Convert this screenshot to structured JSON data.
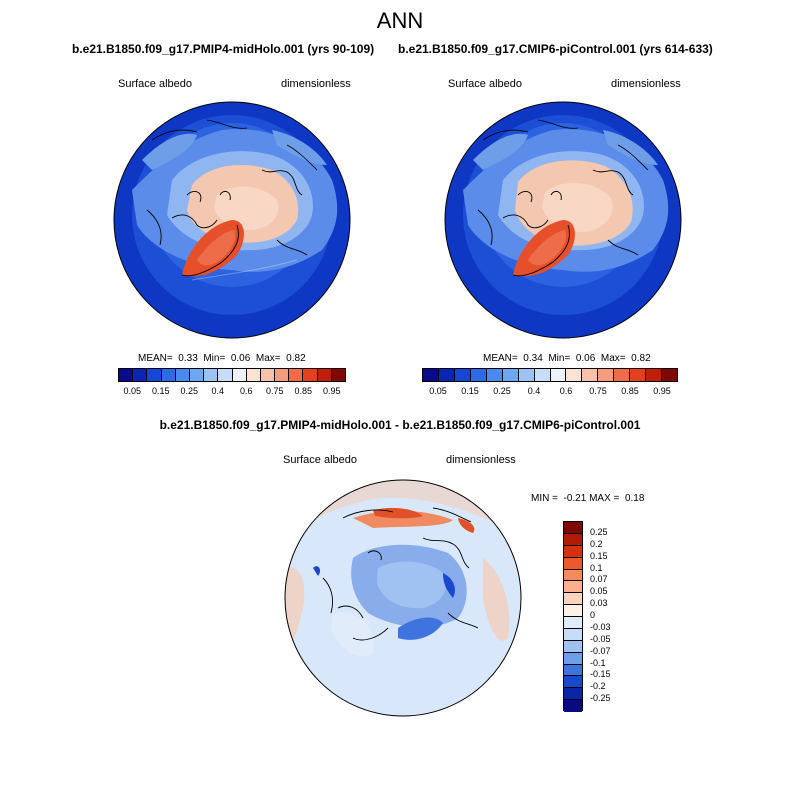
{
  "title": "ANN",
  "panels": [
    {
      "title": "b.e21.B1850.f09_g17.PMIP4-midHolo.001 (yrs 90-109)",
      "variable": "Surface albedo",
      "units": "dimensionless",
      "stats": {
        "mean_label": "MEAN=",
        "mean": "0.33",
        "min_label": "Min=",
        "min": "0.06",
        "max_label": "Max=",
        "max": "0.82"
      }
    },
    {
      "title": "b.e21.B1850.f09_g17.CMIP6-piControl.001 (yrs 614-633)",
      "variable": "Surface albedo",
      "units": "dimensionless",
      "stats": {
        "mean_label": "MEAN=",
        "mean": "0.34",
        "min_label": "Min=",
        "min": "0.06",
        "max_label": "Max=",
        "max": "0.82"
      }
    },
    {
      "title": "b.e21.B1850.f09_g17.PMIP4-midHolo.001 - b.e21.B1850.f09_g17.CMIP6-piControl.001",
      "variable": "Surface albedo",
      "units": "dimensionless",
      "stats": {
        "min_label": "MIN =",
        "min": "-0.21",
        "max_label": "MAX =",
        "max": "0.18"
      }
    }
  ],
  "colorbar_abs": {
    "labels": [
      "0.05",
      "0.15",
      "0.25",
      "0.4",
      "0.6",
      "0.75",
      "0.85",
      "0.95"
    ],
    "colors": [
      "#0a0a8c",
      "#0b24b4",
      "#1646d6",
      "#2e6ae8",
      "#4a8af0",
      "#6fa6f2",
      "#9cc2f4",
      "#c6dcf8",
      "#eef3fb",
      "#fde2d2",
      "#f9c2a8",
      "#f59c7e",
      "#ef6c4a",
      "#e2401e",
      "#c11e0a",
      "#7d0a02"
    ]
  },
  "colorbar_diff": {
    "labels": [
      "0.25",
      "0.2",
      "0.15",
      "0.1",
      "0.07",
      "0.05",
      "0.03",
      "0",
      "-0.03",
      "-0.05",
      "-0.07",
      "-0.1",
      "-0.15",
      "-0.2",
      "-0.25"
    ],
    "colors": [
      "#7d0a02",
      "#b01a06",
      "#d7300f",
      "#ec5a2c",
      "#f58a5e",
      "#f8b090",
      "#fbd3bd",
      "#fdf1e8",
      "#e1ecfa",
      "#c6dcf8",
      "#a0c2f2",
      "#6f9eea",
      "#3f74e0",
      "#1a48cc",
      "#0b24a8",
      "#0a0a80"
    ]
  },
  "map_colors": {
    "ocean_deep": "#0e37c4",
    "ocean_mid": "#2d63e0",
    "ice_edge": "#8fb6f0",
    "sea_ice": "#f4c7b0",
    "greenland": "#e5502a",
    "land_snow": "#6f9ee8",
    "diff_base": "#d8e8fa",
    "diff_pos": "#f6cbb2",
    "diff_neg": "#6f9ae6",
    "diff_hot": "#e0502a"
  }
}
